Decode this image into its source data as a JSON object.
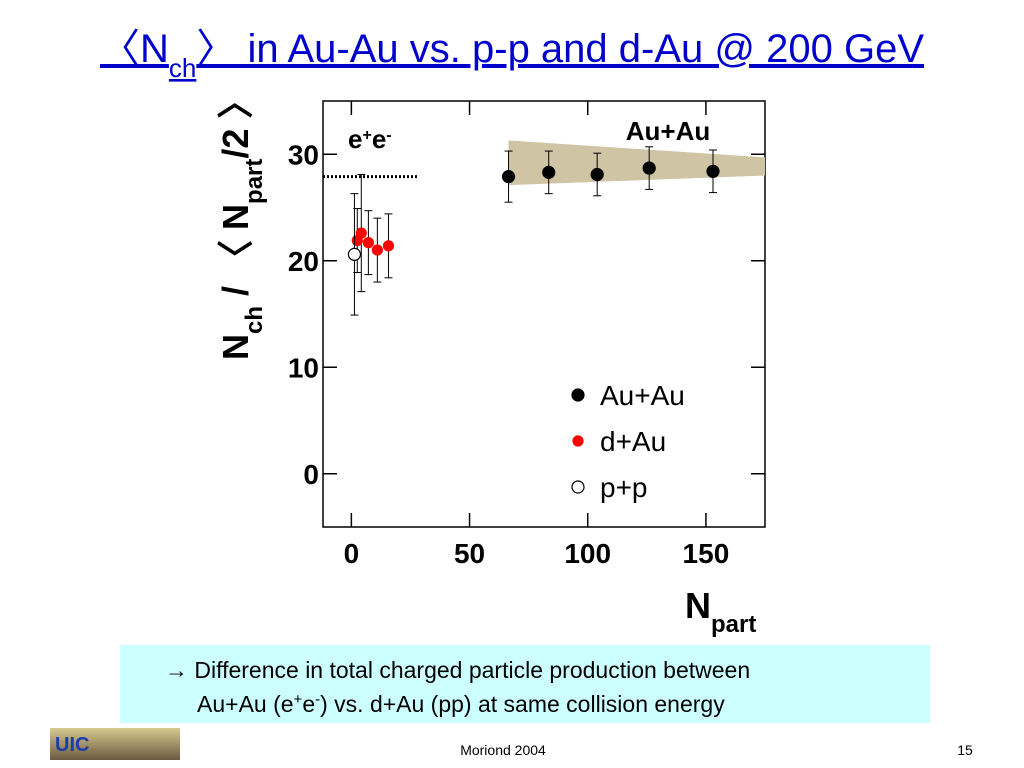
{
  "title_parts": [
    "〈N",
    "ch",
    "〉 in Au-Au vs. p-p and d-Au @ 200 GeV"
  ],
  "chart_data": {
    "type": "scatter",
    "ylabel_parts": [
      "N",
      "ch",
      " / 〈 N",
      "part",
      "/2 〉"
    ],
    "xlabel_parts": [
      "N",
      "part"
    ],
    "xlim": [
      -12,
      175
    ],
    "ylim": [
      -5,
      35
    ],
    "xticks": [
      0,
      50,
      100,
      150
    ],
    "yticks": [
      0,
      10,
      20,
      30
    ],
    "annotation": "Au+Au",
    "reference": {
      "label_parts": [
        "e",
        "+",
        "e",
        "-"
      ],
      "y": 27.9,
      "x": [
        -12,
        28
      ],
      "color": "#000000"
    },
    "band": {
      "color": "#cfc4a4",
      "x": [
        66.5,
        175
      ],
      "upper": [
        31.3,
        29.7
      ],
      "lower": [
        27.1,
        28.0
      ]
    },
    "legend": "lower right",
    "series": [
      {
        "name": "Au+Au",
        "color": "#000000",
        "marker": "filled",
        "x": [
          66.5,
          83.5,
          104,
          126,
          153
        ],
        "values": [
          27.9,
          28.3,
          28.1,
          28.7,
          28.4
        ],
        "errors": [
          2.4,
          2,
          2,
          2,
          2
        ]
      },
      {
        "name": "d+Au",
        "color": "#ff0000",
        "marker": "filled",
        "x": [
          2.5,
          4.2,
          7.2,
          11,
          15.7
        ],
        "values": [
          21.9,
          22.6,
          21.7,
          21.0,
          21.4
        ],
        "errors": [
          3,
          5.5,
          3,
          3,
          3
        ]
      },
      {
        "name": "p+p",
        "color": "#000000",
        "marker": "open",
        "x": [
          1.3
        ],
        "values": [
          20.6
        ],
        "errors": [
          5.7
        ]
      }
    ]
  },
  "note": {
    "line1": "→ Difference in total charged particle production between",
    "line2_parts": [
      "Au+Au (e",
      "+",
      "e",
      "-",
      ") vs. d+Au (pp) at same collision energy"
    ]
  },
  "footer": {
    "logo": "UIC",
    "center": "Moriond 2004",
    "page": "15"
  }
}
